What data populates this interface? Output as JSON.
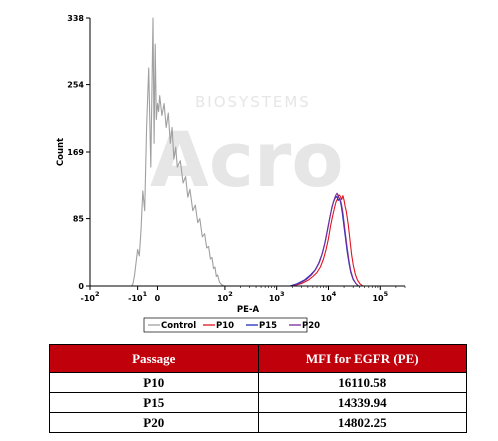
{
  "chart_data": {
    "type": "histogram",
    "xlabel": "PE-A",
    "ylabel": "Count",
    "x_scale": "biexponential (logicle)",
    "ylim": [
      0,
      338
    ],
    "y_ticks": [
      {
        "value": 0,
        "label": "0"
      },
      {
        "value": 85,
        "label": "85"
      },
      {
        "value": 169,
        "label": "169"
      },
      {
        "value": 254,
        "label": "254"
      },
      {
        "value": 338,
        "label": "338"
      }
    ],
    "x_ticks": [
      {
        "value": -100,
        "base": "-10",
        "exp": "2"
      },
      {
        "value": -10,
        "base": "-10",
        "exp": "1"
      },
      {
        "value": 0,
        "base": "0",
        "exp": ""
      },
      {
        "value": 100,
        "base": "10",
        "exp": "2"
      },
      {
        "value": 1000,
        "base": "10",
        "exp": "3"
      },
      {
        "value": 10000,
        "base": "10",
        "exp": "4"
      },
      {
        "value": 100000,
        "base": "10",
        "exp": "5"
      }
    ],
    "series": [
      {
        "name": "Control",
        "color": "#a0a0a0",
        "points": [
          [
            -14,
            0
          ],
          [
            -13,
            4
          ],
          [
            -12,
            14
          ],
          [
            -11,
            30
          ],
          [
            -10,
            46
          ],
          [
            -9,
            38
          ],
          [
            -8,
            70
          ],
          [
            -7,
            120
          ],
          [
            -6,
            95
          ],
          [
            -5,
            200
          ],
          [
            -4,
            275
          ],
          [
            -3,
            150
          ],
          [
            -2,
            338
          ],
          [
            -1.5,
            180
          ],
          [
            -1,
            305
          ],
          [
            -0.5,
            210
          ],
          [
            0,
            230
          ],
          [
            0.5,
            220
          ],
          [
            1,
            240
          ],
          [
            2,
            215
          ],
          [
            3,
            230
          ],
          [
            4,
            200
          ],
          [
            5,
            218
          ],
          [
            6,
            180
          ],
          [
            7,
            200
          ],
          [
            8,
            160
          ],
          [
            9,
            175
          ],
          [
            10,
            150
          ],
          [
            12,
            158
          ],
          [
            14,
            130
          ],
          [
            16,
            138
          ],
          [
            18,
            112
          ],
          [
            20,
            122
          ],
          [
            23,
            95
          ],
          [
            26,
            102
          ],
          [
            29,
            80
          ],
          [
            32,
            85
          ],
          [
            36,
            62
          ],
          [
            40,
            66
          ],
          [
            44,
            48
          ],
          [
            48,
            50
          ],
          [
            52,
            34
          ],
          [
            56,
            36
          ],
          [
            60,
            22
          ],
          [
            64,
            24
          ],
          [
            68,
            12
          ],
          [
            72,
            14
          ],
          [
            78,
            5
          ],
          [
            85,
            2
          ],
          [
            95,
            0
          ]
        ]
      },
      {
        "name": "P10",
        "color": "#e0141e",
        "points": [
          [
            2000,
            0
          ],
          [
            3000,
            3
          ],
          [
            4000,
            7
          ],
          [
            5000,
            12
          ],
          [
            6000,
            17
          ],
          [
            7000,
            24
          ],
          [
            8000,
            34
          ],
          [
            9000,
            46
          ],
          [
            10000,
            60
          ],
          [
            11000,
            76
          ],
          [
            12000,
            88
          ],
          [
            13000,
            98
          ],
          [
            14000,
            106
          ],
          [
            15000,
            110
          ],
          [
            16000,
            115
          ],
          [
            17000,
            113
          ],
          [
            18000,
            109
          ],
          [
            19000,
            114
          ],
          [
            20000,
            108
          ],
          [
            21000,
            100
          ],
          [
            22000,
            95
          ],
          [
            24000,
            78
          ],
          [
            26000,
            58
          ],
          [
            28000,
            40
          ],
          [
            30000,
            27
          ],
          [
            33000,
            15
          ],
          [
            36000,
            8
          ],
          [
            40000,
            3
          ],
          [
            46000,
            0
          ]
        ]
      },
      {
        "name": "P15",
        "color": "#1f2ebd",
        "points": [
          [
            1800,
            0
          ],
          [
            2500,
            3
          ],
          [
            3500,
            8
          ],
          [
            4500,
            14
          ],
          [
            5500,
            20
          ],
          [
            6500,
            29
          ],
          [
            7500,
            40
          ],
          [
            8500,
            54
          ],
          [
            9500,
            70
          ],
          [
            10500,
            85
          ],
          [
            11500,
            97
          ],
          [
            12500,
            106
          ],
          [
            13500,
            111
          ],
          [
            14500,
            113
          ],
          [
            15500,
            108
          ],
          [
            16500,
            110
          ],
          [
            17500,
            102
          ],
          [
            18500,
            92
          ],
          [
            19500,
            80
          ],
          [
            21000,
            63
          ],
          [
            23000,
            43
          ],
          [
            25000,
            28
          ],
          [
            27000,
            17
          ],
          [
            30000,
            8
          ],
          [
            34000,
            3
          ],
          [
            38000,
            0
          ]
        ]
      },
      {
        "name": "P20",
        "color": "#7a2d9b",
        "points": [
          [
            1900,
            0
          ],
          [
            2700,
            3
          ],
          [
            3700,
            8
          ],
          [
            4700,
            14
          ],
          [
            5700,
            21
          ],
          [
            6700,
            30
          ],
          [
            7700,
            42
          ],
          [
            8700,
            56
          ],
          [
            9700,
            72
          ],
          [
            10700,
            87
          ],
          [
            11700,
            100
          ],
          [
            12700,
            108
          ],
          [
            13700,
            114
          ],
          [
            14700,
            117
          ],
          [
            15700,
            112
          ],
          [
            16700,
            110
          ],
          [
            17700,
            104
          ],
          [
            18700,
            95
          ],
          [
            19700,
            84
          ],
          [
            21000,
            68
          ],
          [
            23000,
            48
          ],
          [
            25000,
            31
          ],
          [
            27000,
            19
          ],
          [
            30000,
            9
          ],
          [
            34000,
            3
          ],
          [
            38000,
            0
          ]
        ]
      }
    ],
    "legend_position": "bottom",
    "table": {
      "columns": [
        "Passage",
        "MFI for EGFR (PE)"
      ],
      "rows": [
        [
          "P10",
          "16110.58"
        ],
        [
          "P15",
          "14339.94"
        ],
        [
          "P20",
          "14802.25"
        ]
      ]
    }
  },
  "watermark": {
    "small_text": "BIOSYSTEMS",
    "large_text": "Acro"
  }
}
